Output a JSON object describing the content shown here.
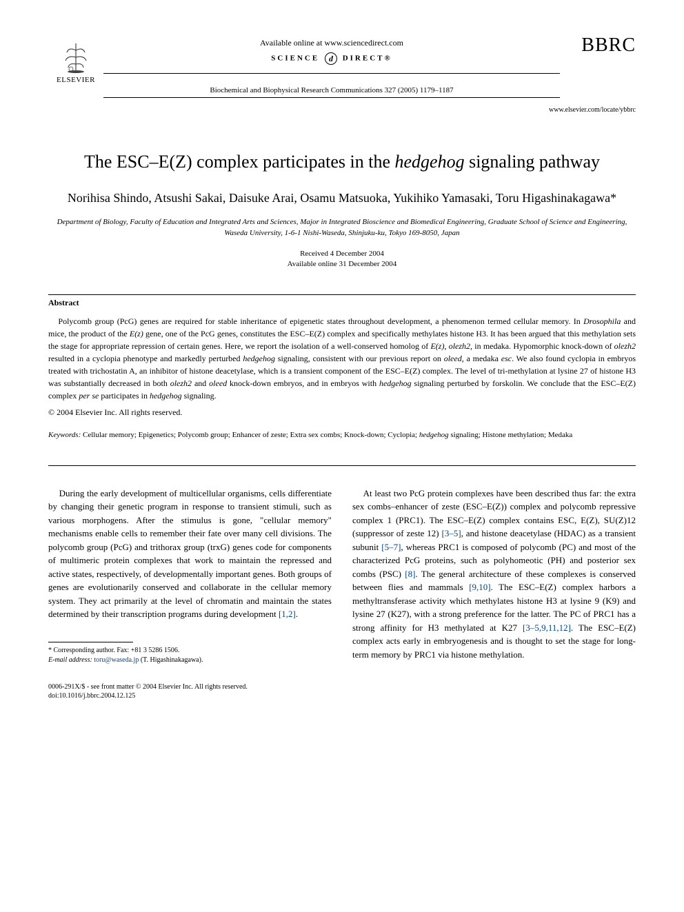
{
  "header": {
    "publisher": "ELSEVIER",
    "available": "Available online at www.sciencedirect.com",
    "science_direct_left": "SCIENCE",
    "science_direct_right": "DIRECT®",
    "journal_line": "Biochemical and Biophysical Research Communications 327 (2005) 1179–1187",
    "bbrc": "BBRC",
    "locate": "www.elsevier.com/locate/ybbrc"
  },
  "title": {
    "pre": "The ESC–E(Z) complex participates in the ",
    "italic": "hedgehog",
    "post": " signaling pathway"
  },
  "authors": "Norihisa Shindo, Atsushi Sakai, Daisuke Arai, Osamu Matsuoka, Yukihiko Yamasaki, Toru Higashinakagawa*",
  "affiliation": "Department of Biology, Faculty of Education and Integrated Arts and Sciences, Major in Integrated Bioscience and Biomedical Engineering, Graduate School of Science and Engineering, Waseda University, 1-6-1 Nishi-Waseda, Shinjuku-ku, Tokyo 169-8050, Japan",
  "dates": {
    "received": "Received 4 December 2004",
    "online": "Available online 31 December 2004"
  },
  "abstract": {
    "heading": "Abstract",
    "body_parts": [
      {
        "t": "plain",
        "v": "Polycomb group (PcG) genes are required for stable inheritance of epigenetic states throughout development, a phenomenon termed cellular memory. In "
      },
      {
        "t": "italic",
        "v": "Drosophila"
      },
      {
        "t": "plain",
        "v": " and mice, the product of the "
      },
      {
        "t": "italic",
        "v": "E(z)"
      },
      {
        "t": "plain",
        "v": " gene, one of the PcG genes, constitutes the ESC–E(Z) complex and specifically methylates histone H3. It has been argued that this methylation sets the stage for appropriate repression of certain genes. Here, we report the isolation of a well-conserved homolog of "
      },
      {
        "t": "italic",
        "v": "E(z)"
      },
      {
        "t": "plain",
        "v": ", "
      },
      {
        "t": "italic",
        "v": "olezh2"
      },
      {
        "t": "plain",
        "v": ", in medaka. Hypomorphic knock-down of "
      },
      {
        "t": "italic",
        "v": "olezh2"
      },
      {
        "t": "plain",
        "v": " resulted in a cyclopia phenotype and markedly perturbed "
      },
      {
        "t": "italic",
        "v": "hedgehog"
      },
      {
        "t": "plain",
        "v": " signaling, consistent with our previous report on "
      },
      {
        "t": "italic",
        "v": "oleed"
      },
      {
        "t": "plain",
        "v": ", a medaka "
      },
      {
        "t": "italic",
        "v": "esc"
      },
      {
        "t": "plain",
        "v": ". We also found cyclopia in embryos treated with trichostatin A, an inhibitor of histone deacetylase, which is a transient component of the ESC–E(Z) complex. The level of tri-methylation at lysine 27 of histone H3 was substantially decreased in both "
      },
      {
        "t": "italic",
        "v": "olezh2"
      },
      {
        "t": "plain",
        "v": " and "
      },
      {
        "t": "italic",
        "v": "oleed"
      },
      {
        "t": "plain",
        "v": " knock-down embryos, and in embryos with "
      },
      {
        "t": "italic",
        "v": "hedgehog"
      },
      {
        "t": "plain",
        "v": " signaling perturbed by forskolin. We conclude that the ESC–E(Z) complex "
      },
      {
        "t": "italic",
        "v": "per se"
      },
      {
        "t": "plain",
        "v": " participates in "
      },
      {
        "t": "italic",
        "v": "hedgehog"
      },
      {
        "t": "plain",
        "v": " signaling."
      }
    ],
    "copyright": "© 2004 Elsevier Inc. All rights reserved."
  },
  "keywords": {
    "label": "Keywords:",
    "parts": [
      {
        "t": "plain",
        "v": " Cellular memory; Epigenetics; Polycomb group; Enhancer of zeste; Extra sex combs; Knock-down; Cyclopia; "
      },
      {
        "t": "italic",
        "v": "hedgehog"
      },
      {
        "t": "plain",
        "v": " signaling; Histone methylation; Medaka"
      }
    ]
  },
  "body": {
    "left": "During the early development of multicellular organisms, cells differentiate by changing their genetic program in response to transient stimuli, such as various morphogens. After the stimulus is gone, \"cellular memory\" mechanisms enable cells to remember their fate over many cell divisions. The polycomb group (PcG) and trithorax group (trxG) genes code for components of multimeric protein complexes that work to maintain the repressed and active states, respectively, of developmentally important genes. Both groups of genes are evolutionarily conserved and collaborate in the cellular memory system. They act primarily at the level of chromatin and maintain the states determined by their transcription programs during development ",
    "left_ref": "[1,2]",
    "left_tail": ".",
    "right_parts": [
      {
        "t": "plain",
        "v": "At least two PcG protein complexes have been described thus far: the extra sex combs–enhancer of zeste (ESC–E(Z)) complex and polycomb repressive complex 1 (PRC1). The ESC–E(Z) complex contains ESC, E(Z), SU(Z)12 (suppressor of zeste 12) "
      },
      {
        "t": "ref",
        "v": "[3–5]"
      },
      {
        "t": "plain",
        "v": ", and histone deacetylase (HDAC) as a transient subunit "
      },
      {
        "t": "ref",
        "v": "[5–7]"
      },
      {
        "t": "plain",
        "v": ", whereas PRC1 is composed of polycomb (PC) and most of the characterized PcG proteins, such as polyhomeotic (PH) and posterior sex combs (PSC) "
      },
      {
        "t": "ref",
        "v": "[8]"
      },
      {
        "t": "plain",
        "v": ". The general architecture of these complexes is conserved between flies and mammals "
      },
      {
        "t": "ref",
        "v": "[9,10]"
      },
      {
        "t": "plain",
        "v": ". The ESC–E(Z) complex harbors a methyltransferase activity which methylates histone H3 at lysine 9 (K9) and lysine 27 (K27), with a strong preference for the latter. The PC of PRC1 has a strong affinity for H3 methylated at K27 "
      },
      {
        "t": "ref",
        "v": "[3–5,9,11,12]"
      },
      {
        "t": "plain",
        "v": ". The ESC–E(Z) complex acts early in embryogenesis and is thought to set the stage for long-term memory by PRC1 via histone methylation."
      }
    ]
  },
  "footnote": {
    "corresponding": "* Corresponding author. Fax: +81 3 5286 1506.",
    "email_label": "E-mail address:",
    "email": "toru@waseda.jp",
    "email_tail": " (T. Higashinakagawa)."
  },
  "footer": {
    "line1": "0006-291X/$ - see front matter © 2004 Elsevier Inc. All rights reserved.",
    "line2": "doi:10.1016/j.bbrc.2004.12.125"
  },
  "colors": {
    "ref": "#004488",
    "text": "#000000",
    "bg": "#ffffff"
  }
}
